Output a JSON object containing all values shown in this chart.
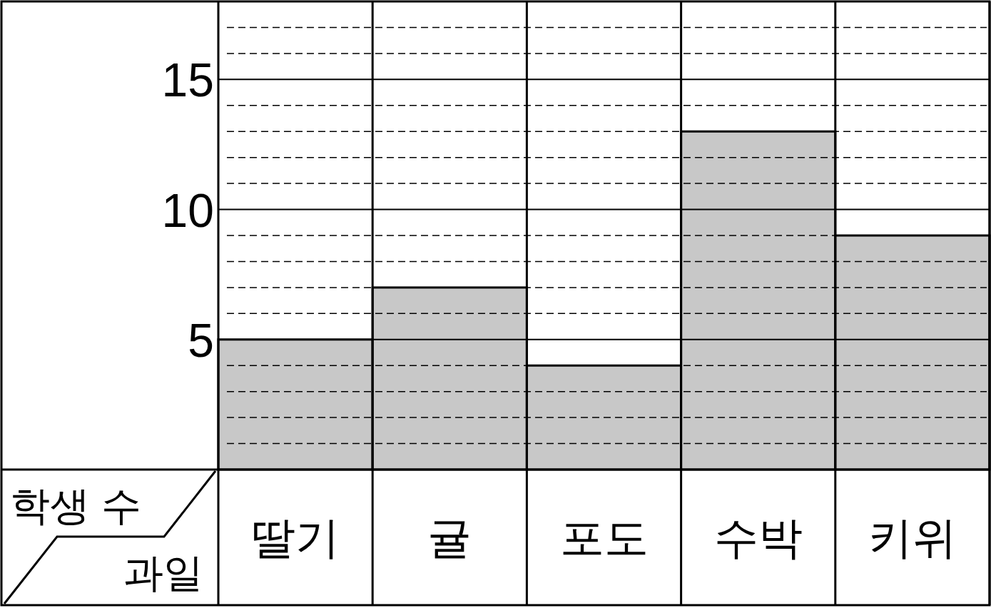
{
  "chart_data": {
    "type": "bar",
    "xlabel": "과일",
    "ylabel": "학생 수",
    "categories": [
      "딸기",
      "귤",
      "포도",
      "수박",
      "키위"
    ],
    "values": [
      5,
      7,
      4,
      13,
      9
    ],
    "color": "#c8c8c8",
    "ylim": [
      0,
      18
    ],
    "yticks": [
      {
        "value": 1,
        "label": null
      },
      {
        "value": 2,
        "label": null
      },
      {
        "value": 3,
        "label": null
      },
      {
        "value": 4,
        "label": null
      },
      5,
      {
        "value": 6,
        "label": null
      },
      {
        "value": 7,
        "label": null
      },
      {
        "value": 8,
        "label": null
      },
      {
        "value": 9,
        "label": null
      },
      10,
      {
        "value": 11,
        "label": null
      },
      {
        "value": 12,
        "label": null
      },
      {
        "value": 13,
        "label": null
      },
      {
        "value": 14,
        "label": null
      },
      15,
      {
        "value": 16,
        "label": null
      },
      {
        "value": 17,
        "label": null
      }
    ],
    "grid": "y"
  }
}
